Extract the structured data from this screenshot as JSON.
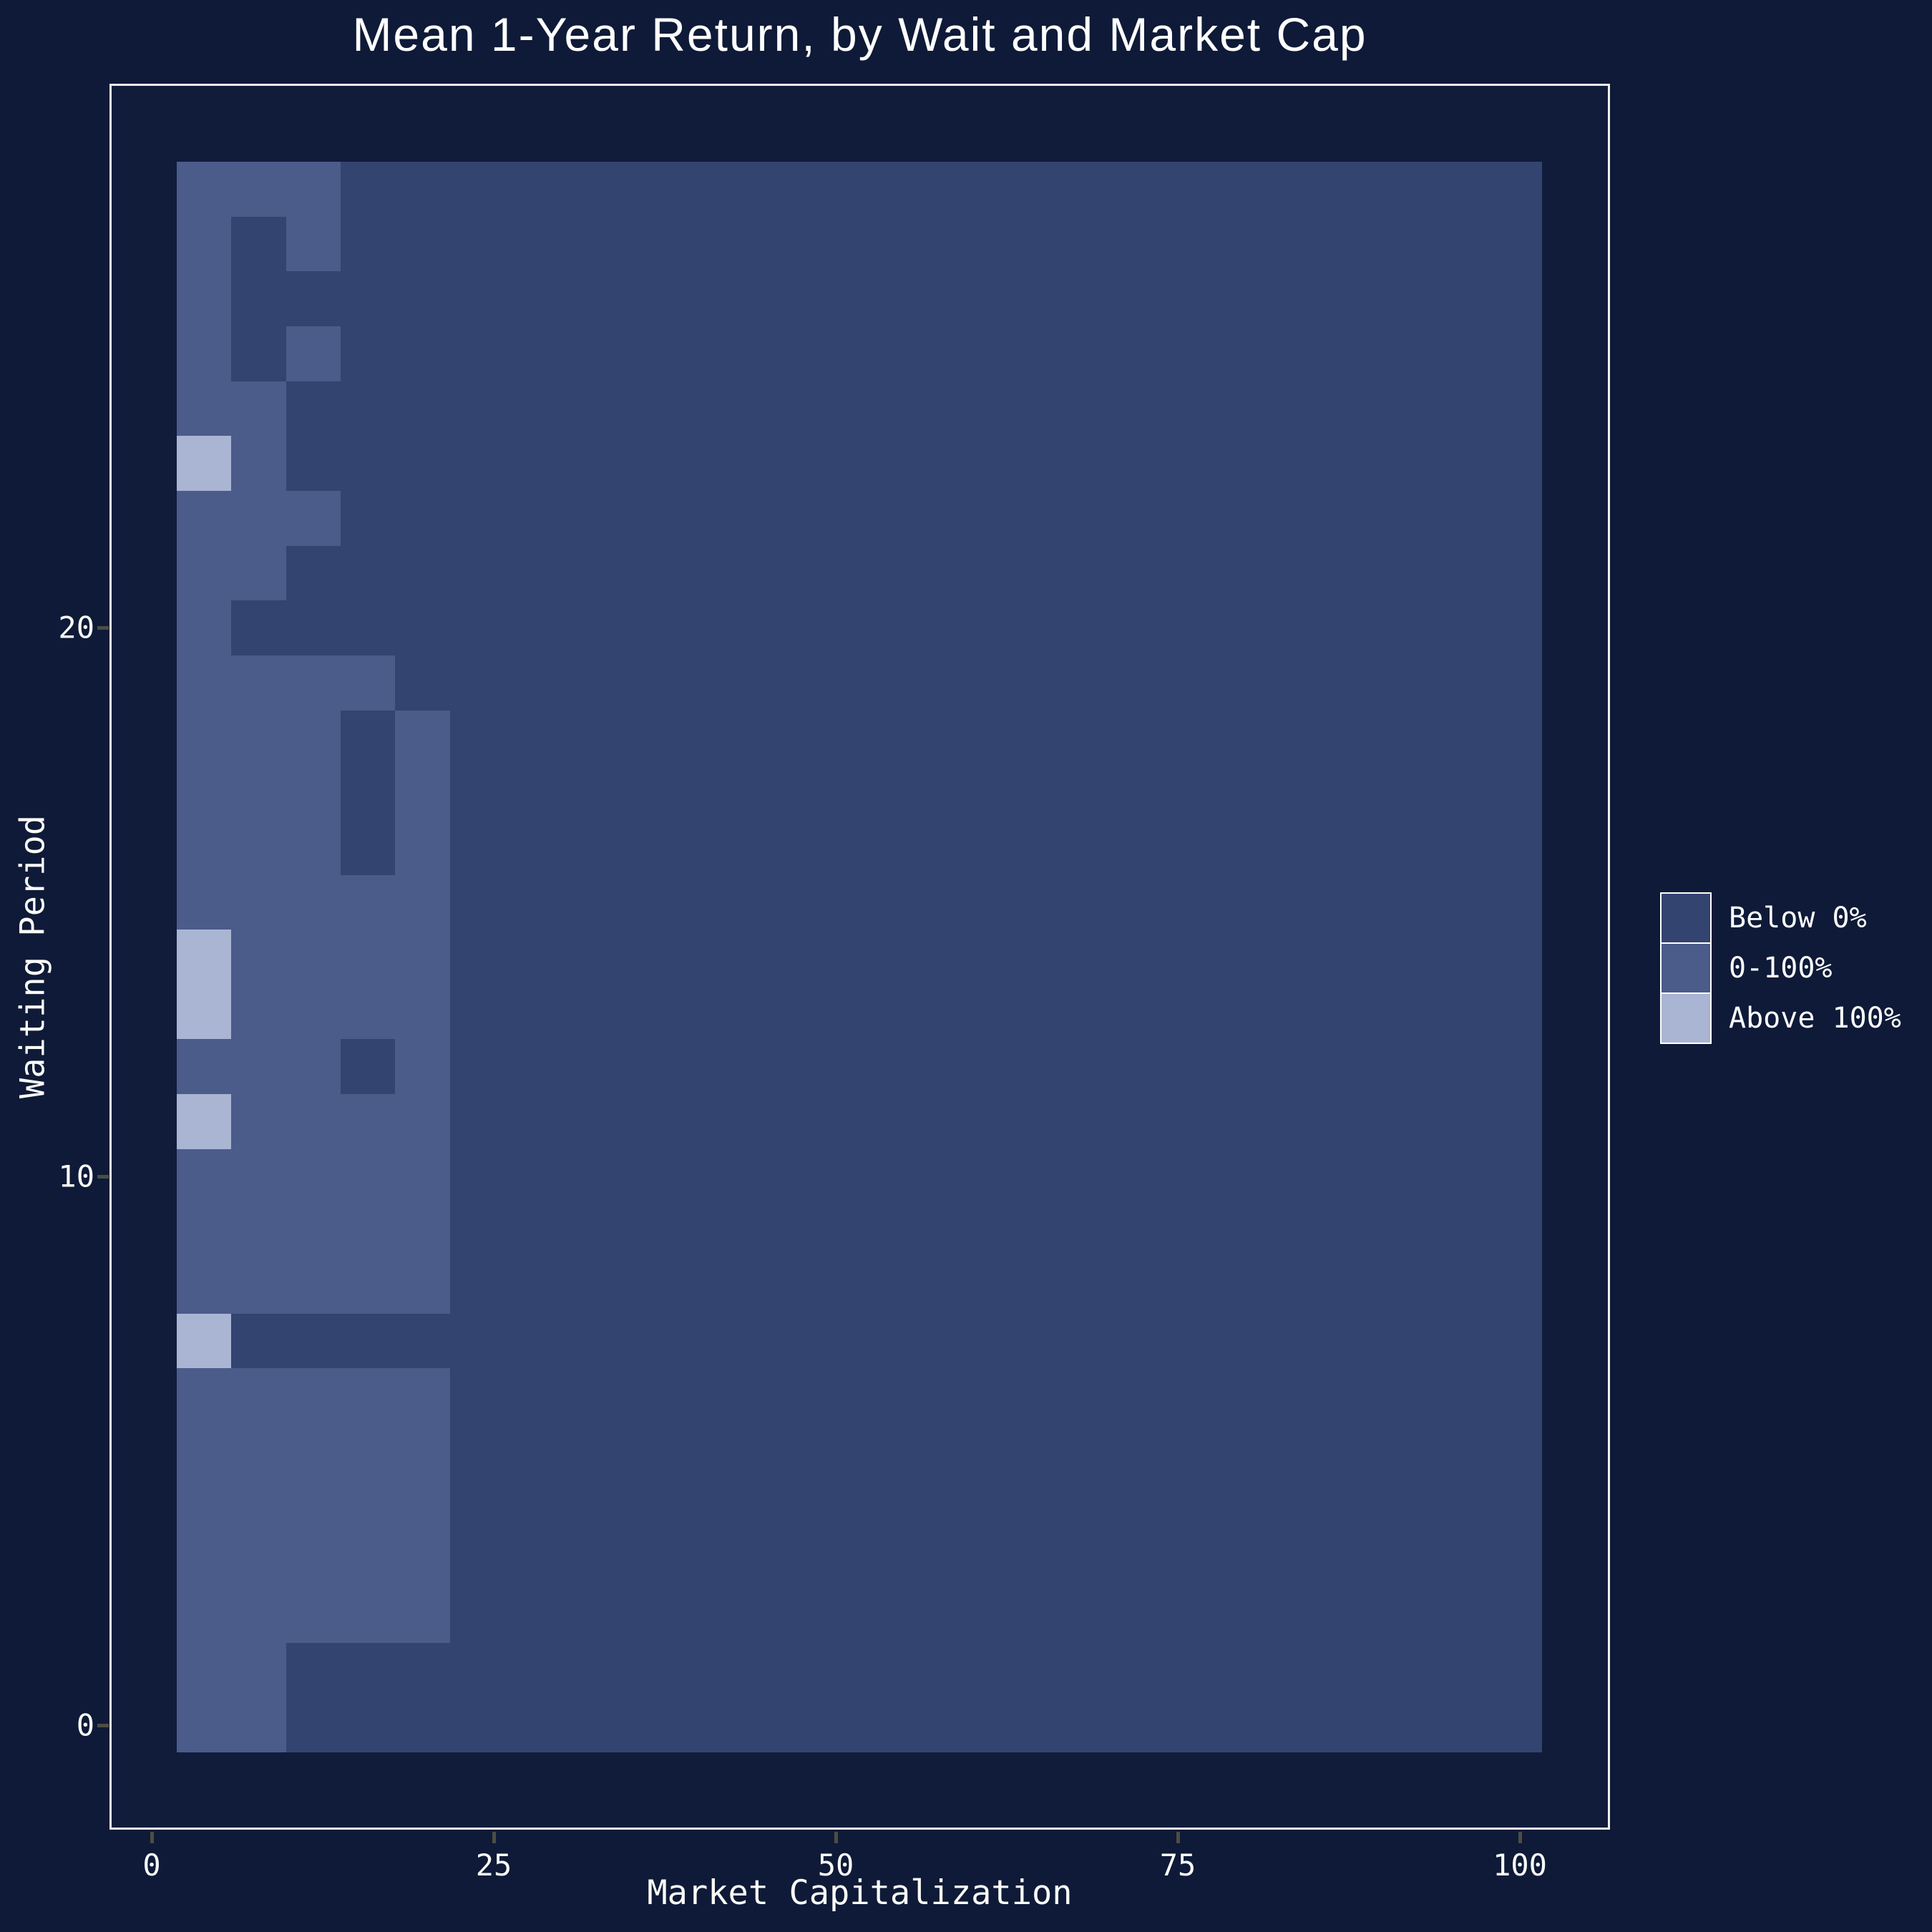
{
  "colors": {
    "page_bg": "#0e1a37",
    "panel_bg": "#101c3a",
    "panel_border": "#f0f0ec",
    "text": "#ffffff",
    "tick_mark": "#4d4d44",
    "below_0": "#344470",
    "mid_0_100": "#4b5b8a",
    "above_100": "#aab4d3"
  },
  "chart_data": {
    "type": "heatmap",
    "title": "Mean 1-Year Return, by Wait and Market Cap",
    "xlabel": "Market Capitalization",
    "ylabel": "Waiting Period",
    "x_ticks": [
      0,
      25,
      50,
      75,
      100
    ],
    "y_ticks": [
      0,
      10,
      20
    ],
    "x_axis_range": [
      -3.1,
      106.6
    ],
    "y_axis_range": [
      -2.4,
      30.9
    ],
    "x_bins": {
      "start": 2,
      "binwidth": 4,
      "count": 25
    },
    "y_bins": {
      "start": -0.5,
      "binwidth": 1,
      "count": 29
    },
    "grid_on": false,
    "legend_position": "right-center",
    "classes": [
      {
        "key": "D",
        "label": "Below 0%",
        "color": "#344470"
      },
      {
        "key": "M",
        "label": "0-100%",
        "color": "#4b5b8a"
      },
      {
        "key": "L",
        "label": "Above 100%",
        "color": "#aab4d3"
      }
    ],
    "rows_note": "Rows listed top-to-bottom = waiting period 28 down to 0; each string is 25 market-cap bins [2,6),[6,10),...,[98,102); D=Below 0%, M=0-100%, L=Above 100%",
    "rows": [
      {
        "wait": 28,
        "cells": "MMMDDDDDDDDDDDDDDDDDDDDDD"
      },
      {
        "wait": 27,
        "cells": "MDMDDDDDDDDDDDDDDDDDDDDDD"
      },
      {
        "wait": 26,
        "cells": "MDDDDDDDDDDDDDDDDDDDDDDDD"
      },
      {
        "wait": 25,
        "cells": "MDMDDDDDDDDDDDDDDDDDDDDDD"
      },
      {
        "wait": 24,
        "cells": "MMDDDDDDDDDDDDDDDDDDDDDDD"
      },
      {
        "wait": 23,
        "cells": "LMDDDDDDDDDDDDDDDDDDDDDDD"
      },
      {
        "wait": 22,
        "cells": "MMMDDDDDDDDDDDDDDDDDDDDDD"
      },
      {
        "wait": 21,
        "cells": "MMDDDDDDDDDDDDDDDDDDDDDDD"
      },
      {
        "wait": 20,
        "cells": "MDDDDDDDDDDDDDDDDDDDDDDDD"
      },
      {
        "wait": 19,
        "cells": "MMMMDDDDDDDDDDDDDDDDDDDDD"
      },
      {
        "wait": 18,
        "cells": "MMMDMDDDDDDDDDDDDDDDDDDDD"
      },
      {
        "wait": 17,
        "cells": "MMMDMDDDDDDDDDDDDDDDDDDDD"
      },
      {
        "wait": 16,
        "cells": "MMMDMDDDDDDDDDDDDDDDDDDDD"
      },
      {
        "wait": 15,
        "cells": "MMMMMDDDDDDDDDDDDDDDDDDDD"
      },
      {
        "wait": 14,
        "cells": "LMMMMDDDDDDDDDDDDDDDDDDDD"
      },
      {
        "wait": 13,
        "cells": "LMMMMDDDDDDDDDDDDDDDDDDDD"
      },
      {
        "wait": 12,
        "cells": "MMMDMDDDDDDDDDDDDDDDDDDDD"
      },
      {
        "wait": 11,
        "cells": "LMMMMDDDDDDDDDDDDDDDDDDDD"
      },
      {
        "wait": 10,
        "cells": "MMMMMDDDDDDDDDDDDDDDDDDDD"
      },
      {
        "wait": 9,
        "cells": "MMMMMDDDDDDDDDDDDDDDDDDDD"
      },
      {
        "wait": 8,
        "cells": "MMMMMDDDDDDDDDDDDDDDDDDDD"
      },
      {
        "wait": 7,
        "cells": "LDDDDDDDDDDDDDDDDDDDDDDDD"
      },
      {
        "wait": 6,
        "cells": "MMMMMDDDDDDDDDDDDDDDDDDDD"
      },
      {
        "wait": 5,
        "cells": "MMMMMDDDDDDDDDDDDDDDDDDDD"
      },
      {
        "wait": 4,
        "cells": "MMMMMDDDDDDDDDDDDDDDDDDDD"
      },
      {
        "wait": 3,
        "cells": "MMMMMDDDDDDDDDDDDDDDDDDDD"
      },
      {
        "wait": 2,
        "cells": "MMMMMDDDDDDDDDDDDDDDDDDDD"
      },
      {
        "wait": 1,
        "cells": "MMDDDDDDDDDDDDDDDDDDDDDDD"
      },
      {
        "wait": 0,
        "cells": "MMDDDDDDDDDDDDDDDDDDDDDDD"
      }
    ]
  }
}
